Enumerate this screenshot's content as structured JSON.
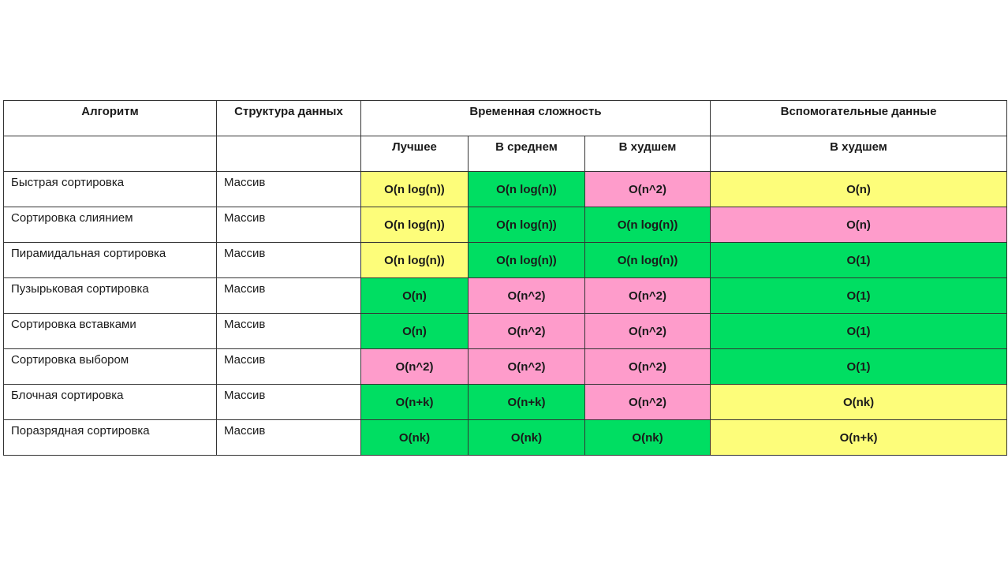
{
  "colors": {
    "yellow": "#fdfd7a",
    "green": "#00de62",
    "pink": "#fe9ccb"
  },
  "header": {
    "algorithm": "Алгоритм",
    "data_structure": "Структура данных",
    "time_complexity": "Временная сложность",
    "aux_data": "Вспомогательные данные",
    "best": "Лучшее",
    "average": "В среднем",
    "worst": "В худшем",
    "aux_worst": "В худшем"
  },
  "rows": [
    {
      "name": "Быстрая сортировка",
      "structure": "Массив",
      "best": "O(n log(n))",
      "best_color": "yellow",
      "avg": "O(n log(n))",
      "avg_color": "green",
      "worst": "O(n^2)",
      "worst_color": "pink",
      "aux": "O(n)",
      "aux_color": "yellow"
    },
    {
      "name": "Сортировка слиянием",
      "structure": "Массив",
      "best": "O(n log(n))",
      "best_color": "yellow",
      "avg": "O(n log(n))",
      "avg_color": "green",
      "worst": "O(n log(n))",
      "worst_color": "green",
      "aux": "O(n)",
      "aux_color": "pink"
    },
    {
      "name": "Пирамидальная сортировка",
      "structure": "Массив",
      "best": "O(n log(n))",
      "best_color": "yellow",
      "avg": "O(n log(n))",
      "avg_color": "green",
      "worst": "O(n log(n))",
      "worst_color": "green",
      "aux": "O(1)",
      "aux_color": "green"
    },
    {
      "name": "Пузырьковая сортировка",
      "structure": "Массив",
      "best": "O(n)",
      "best_color": "green",
      "avg": "O(n^2)",
      "avg_color": "pink",
      "worst": "O(n^2)",
      "worst_color": "pink",
      "aux": "O(1)",
      "aux_color": "green"
    },
    {
      "name": "Сортировка вставками",
      "structure": "Массив",
      "best": "O(n)",
      "best_color": "green",
      "avg": "O(n^2)",
      "avg_color": "pink",
      "worst": "O(n^2)",
      "worst_color": "pink",
      "aux": "O(1)",
      "aux_color": "green"
    },
    {
      "name": "Сортировка выбором",
      "structure": "Массив",
      "best": "O(n^2)",
      "best_color": "pink",
      "avg": "O(n^2)",
      "avg_color": "pink",
      "worst": "O(n^2)",
      "worst_color": "pink",
      "aux": "O(1)",
      "aux_color": "green"
    },
    {
      "name": "Блочная сортировка",
      "structure": "Массив",
      "best": "O(n+k)",
      "best_color": "green",
      "avg": "O(n+k)",
      "avg_color": "green",
      "worst": "O(n^2)",
      "worst_color": "pink",
      "aux": "O(nk)",
      "aux_color": "yellow"
    },
    {
      "name": "Поразрядная сортировка",
      "structure": "Массив",
      "best": "O(nk)",
      "best_color": "green",
      "avg": "O(nk)",
      "avg_color": "green",
      "worst": "O(nk)",
      "worst_color": "green",
      "aux": "O(n+k)",
      "aux_color": "yellow"
    }
  ]
}
